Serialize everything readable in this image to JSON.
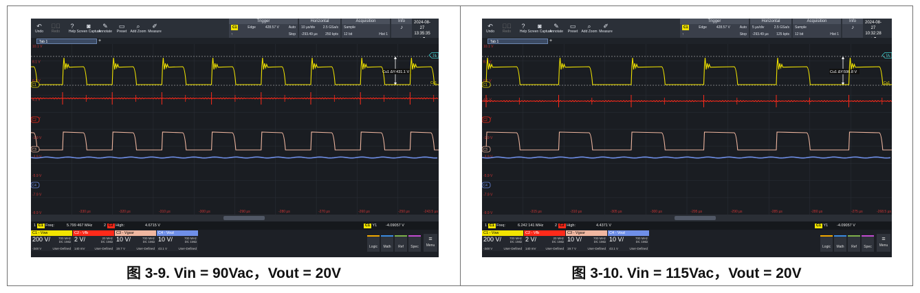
{
  "captions": [
    "图 3-9. Vin = 90Vac，Vout = 20V",
    "图 3-10. Vin = 115Vac，Vout = 20V"
  ],
  "toolbar": [
    "Undo",
    "Redo",
    "Help",
    "Screen Capture",
    "Annotate",
    "Preset",
    "Add Zoom",
    "Measure"
  ],
  "tab_label": "Tab 1",
  "colors": {
    "ch1": "#f2e400",
    "ch2": "#ff2a1a",
    "ch3": "#f0b7a0",
    "ch4": "#6f8fe8"
  },
  "scopes": [
    {
      "trigger": {
        "title": "Trigger",
        "type": "Edge",
        "level": "428.57 V",
        "mode": "Auto",
        "state": "Stop"
      },
      "horizontal": {
        "title": "Horizontal",
        "scale": "10 µs/div",
        "pos": "-293.49 µs",
        "rate": "2.5 GSa/s",
        "pts": "250 kpts"
      },
      "acquisition": {
        "title": "Acquisition",
        "mode": "Sample",
        "bits": "12 bit",
        "hist": "Hist 1"
      },
      "info": "Info",
      "date": "2024-08-27",
      "time": "13:35:35",
      "volt_labels": [
        "10.1 V",
        "8.1 V",
        "6.1 V",
        "4.1 V",
        "2.1 V",
        "-1.9 V",
        "-3.9 V",
        "-5.9 V",
        "-7.9 V",
        "-9.9 V"
      ],
      "time_labels": [
        "-330 µs",
        "-320 µs",
        "-310 µs",
        "-300 µs",
        "-290 µs",
        "-280 µs",
        "-270 µs",
        "-260 µs",
        "-250 µs",
        "-243.5 µs"
      ],
      "cursor_label": "Cu1 ΔY:431.1 V",
      "cursor_tag": "Cu1",
      "ta_tag": "TA",
      "freq_label": "Freq:",
      "freq": "5.799 467 MHz",
      "high_label": "High:",
      "high": "4.6715 V",
      "y1_label": "Y1",
      "y1": "-4.09057 V",
      "channels": [
        {
          "name": "C1 - Vsw",
          "scale": "200 V/",
          "bw": "700 MHz",
          "cp": "DC 1MΩ",
          "off": "-348 V",
          "ud": "User-Defined"
        },
        {
          "name": "C2 - Vfb",
          "scale": "2 V/",
          "bw": "20 MHz",
          "cp": "DC 1MΩ",
          "off": "140 mV",
          "ud": "User-Defined"
        },
        {
          "name": "C3 - Vgssr",
          "scale": "10 V/",
          "bw": "700 MHz",
          "cp": "DC 1MΩ",
          "off": "19.7 V",
          "ud": "User-Defined"
        },
        {
          "name": "C4 - Vout",
          "scale": "10 V/",
          "bw": "700 MHz",
          "cp": "DC 1MΩ",
          "off": "43.1 V",
          "ud": "User-Defined"
        }
      ],
      "ch_markers": [
        "C1",
        "C2",
        "C3",
        "C4"
      ],
      "right_buttons": [
        "Logic",
        "Math",
        "Ref",
        "Spec",
        "Menu"
      ]
    },
    {
      "trigger": {
        "title": "Trigger",
        "type": "Edge",
        "level": "428.57 V",
        "mode": "Auto",
        "state": "Stop"
      },
      "horizontal": {
        "title": "Horizontal",
        "scale": "5 µs/div",
        "pos": "-293.49 µs",
        "rate": "2.5 GSa/s",
        "pts": "125 kpts"
      },
      "acquisition": {
        "title": "Acquisition",
        "mode": "Sample",
        "bits": "12 bit",
        "hist": "Hist 1"
      },
      "info": "Info",
      "date": "2024-08-27",
      "time": "10:32:28",
      "volt_labels": [
        "10.1 V",
        "8.1 V",
        "6.1 V",
        "4.1 V",
        "2.1 V",
        "-1.9 V",
        "-3.9 V",
        "-5.9 V",
        "-7.9 V",
        "-9.9 V"
      ],
      "time_labels": [
        "-315 µs",
        "-310 µs",
        "-305 µs",
        "-300 µs",
        "-295 µs",
        "-290 µs",
        "-285 µs",
        "-280 µs",
        "-275 µs",
        "-268.5 µs"
      ],
      "cursor_label": "Cu1 ΔY:596.8 V",
      "cursor_tag": "Cu1",
      "ta_tag": "TA",
      "freq_label": "Freq:",
      "freq": "6.242 141 MHz",
      "high_label": "High:",
      "high": "4.4371 V",
      "y1_label": "Y1",
      "y1": "-4.09057 V",
      "channels": [
        {
          "name": "C1 - Vsw",
          "scale": "200 V/",
          "bw": "700 MHz",
          "cp": "DC 1MΩ",
          "off": "-348 V",
          "ud": "User-Defined"
        },
        {
          "name": "C2 - Vfb",
          "scale": "2 V/",
          "bw": "20 MHz",
          "cp": "DC 1MΩ",
          "off": "140 mV",
          "ud": "User-Defined"
        },
        {
          "name": "C3 - Vgssr",
          "scale": "10 V/",
          "bw": "700 MHz",
          "cp": "DC 1MΩ",
          "off": "19.7 V",
          "ud": "User-Defined"
        },
        {
          "name": "C4 - Vout",
          "scale": "10 V/",
          "bw": "700 MHz",
          "cp": "DC 1MΩ",
          "off": "43.1 V",
          "ud": "User-Defined"
        }
      ],
      "ch_markers": [
        "C1",
        "C2",
        "C3",
        "C4"
      ],
      "right_buttons": [
        "Logic",
        "Math",
        "Ref",
        "Spec",
        "Menu"
      ]
    }
  ]
}
